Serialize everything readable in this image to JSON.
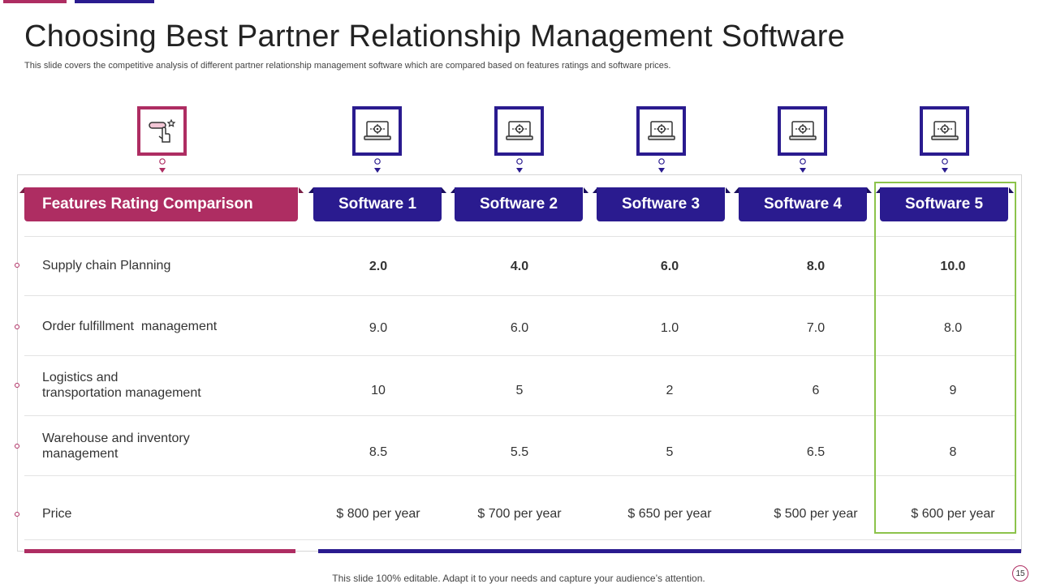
{
  "slide": {
    "title": "Choosing Best Partner Relationship Management Software",
    "subtitle": "This slide covers the competitive analysis of different partner relationship management software which are compared based on features ratings and software prices.",
    "footer": "This slide 100% editable. Adapt it to your needs and capture your audience’s attention.",
    "page_number": "15"
  },
  "icons": {
    "feature_icon": "hand-pointer-icon",
    "software_icon": "laptop-gear-icon"
  },
  "colors": {
    "accent_pink": "#ae2d62",
    "accent_navy": "#2a1b8f",
    "highlight_green": "#8cc34b"
  },
  "table": {
    "feature_header": "Features Rating Comparison",
    "columns": [
      "Software 1",
      "Software 2",
      "Software 3",
      "Software 4",
      "Software 5"
    ],
    "rows": [
      {
        "label_lines": [
          "Supply chain Planning"
        ],
        "values": [
          "2.0",
          "4.0",
          "6.0",
          "8.0",
          "10.0"
        ]
      },
      {
        "label_lines": [
          "Order fulfillment  management"
        ],
        "values": [
          "9.0",
          "6.0",
          "1.0",
          "7.0",
          "8.0"
        ]
      },
      {
        "label_lines": [
          "Logistics and",
          "transportation management"
        ],
        "values": [
          "10",
          "5",
          "2",
          "6",
          "9"
        ]
      },
      {
        "label_lines": [
          "Warehouse and inventory",
          "management"
        ],
        "values": [
          "8.5",
          "5.5",
          "5",
          "6.5",
          "8"
        ]
      },
      {
        "label_lines": [
          "Price"
        ],
        "values": [
          "$ 800 per year",
          "$ 700 per year",
          "$ 650 per year",
          "$ 500 per year",
          "$ 600 per year"
        ]
      }
    ],
    "highlighted_column": "Software 5"
  }
}
